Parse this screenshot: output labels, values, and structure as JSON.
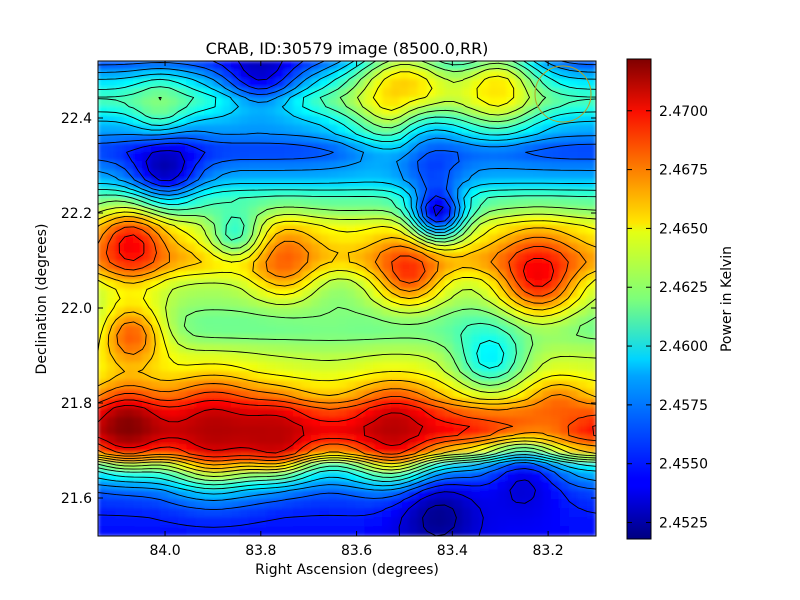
{
  "chart_data": {
    "type": "heatmap",
    "title": "CRAB, ID:30579 image (8500.0,RR)",
    "xlabel": "Right Ascension (degrees)",
    "ylabel": "Declination (degrees)",
    "xlim": [
      84.14,
      83.1
    ],
    "ylim": [
      21.52,
      22.52
    ],
    "x_ticks": [
      84.0,
      83.8,
      83.6,
      83.4,
      83.2
    ],
    "x_tick_labels": [
      "84.0",
      "83.8",
      "83.6",
      "83.4",
      "83.2"
    ],
    "y_ticks": [
      21.6,
      21.8,
      22.0,
      22.2,
      22.4
    ],
    "y_tick_labels": [
      "21.6",
      "21.8",
      "22.0",
      "22.2",
      "22.4"
    ],
    "colorbar": {
      "label": "Power in Kelvin",
      "range": [
        2.4518,
        2.4722
      ],
      "ticks": [
        2.4525,
        2.455,
        2.4575,
        2.46,
        2.4625,
        2.465,
        2.4675,
        2.47
      ],
      "tick_labels": [
        "2.4525",
        "2.4550",
        "2.4575",
        "2.4600",
        "2.4625",
        "2.4650",
        "2.4675",
        "2.4700"
      ],
      "colormap": "jet"
    },
    "y_band_profile": [
      {
        "dec": 21.52,
        "value": 2.4545
      },
      {
        "dec": 21.56,
        "value": 2.4548
      },
      {
        "dec": 21.6,
        "value": 2.4555
      },
      {
        "dec": 21.66,
        "value": 2.4585
      },
      {
        "dec": 21.7,
        "value": 2.4665
      },
      {
        "dec": 21.74,
        "value": 2.47
      },
      {
        "dec": 21.78,
        "value": 2.468
      },
      {
        "dec": 21.82,
        "value": 2.465
      },
      {
        "dec": 21.88,
        "value": 2.4635
      },
      {
        "dec": 21.96,
        "value": 2.4615
      },
      {
        "dec": 22.04,
        "value": 2.4628
      },
      {
        "dec": 22.1,
        "value": 2.466
      },
      {
        "dec": 22.16,
        "value": 2.4645
      },
      {
        "dec": 22.22,
        "value": 2.4615
      },
      {
        "dec": 22.28,
        "value": 2.4575
      },
      {
        "dec": 22.33,
        "value": 2.4555
      },
      {
        "dec": 22.38,
        "value": 2.458
      },
      {
        "dec": 22.44,
        "value": 2.461
      },
      {
        "dec": 22.48,
        "value": 2.4585
      },
      {
        "dec": 22.52,
        "value": 2.4555
      }
    ],
    "blobs": [
      {
        "ra": 84.08,
        "dec": 21.75,
        "value": 2.4722,
        "radius": 0.05
      },
      {
        "ra": 83.9,
        "dec": 21.74,
        "value": 2.4712,
        "radius": 0.07
      },
      {
        "ra": 83.76,
        "dec": 21.73,
        "value": 2.471,
        "radius": 0.05
      },
      {
        "ra": 83.52,
        "dec": 21.74,
        "value": 2.4712,
        "radius": 0.06
      },
      {
        "ra": 83.18,
        "dec": 21.78,
        "value": 2.468,
        "radius": 0.04
      },
      {
        "ra": 84.07,
        "dec": 22.13,
        "value": 2.47,
        "radius": 0.05
      },
      {
        "ra": 83.22,
        "dec": 22.07,
        "value": 2.47,
        "radius": 0.06
      },
      {
        "ra": 83.49,
        "dec": 22.08,
        "value": 2.469,
        "radius": 0.05
      },
      {
        "ra": 83.75,
        "dec": 22.1,
        "value": 2.468,
        "radius": 0.05
      },
      {
        "ra": 84.07,
        "dec": 21.94,
        "value": 2.468,
        "radius": 0.05
      },
      {
        "ra": 83.5,
        "dec": 22.45,
        "value": 2.466,
        "radius": 0.08
      },
      {
        "ra": 83.3,
        "dec": 22.46,
        "value": 2.465,
        "radius": 0.06
      },
      {
        "ra": 84.0,
        "dec": 22.3,
        "value": 2.4525,
        "radius": 0.05
      },
      {
        "ra": 83.43,
        "dec": 22.2,
        "value": 2.453,
        "radius": 0.04
      },
      {
        "ra": 83.45,
        "dec": 22.34,
        "value": 2.4535,
        "radius": 0.05
      },
      {
        "ra": 83.8,
        "dec": 22.51,
        "value": 2.453,
        "radius": 0.06
      },
      {
        "ra": 83.43,
        "dec": 21.56,
        "value": 2.452,
        "radius": 0.06
      },
      {
        "ra": 83.25,
        "dec": 21.62,
        "value": 2.4535,
        "radius": 0.06
      },
      {
        "ra": 83.32,
        "dec": 21.9,
        "value": 2.459,
        "radius": 0.05
      },
      {
        "ra": 83.85,
        "dec": 22.16,
        "value": 2.46,
        "radius": 0.04
      },
      {
        "ra": 84.01,
        "dec": 22.42,
        "value": 2.4625,
        "radius": 0.04
      },
      {
        "ra": 83.65,
        "dec": 22.0,
        "value": 2.462,
        "radius": 0.05
      }
    ]
  }
}
